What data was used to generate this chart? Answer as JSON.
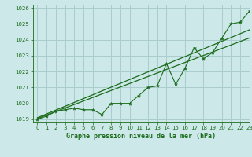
{
  "title": "Graphe pression niveau de la mer (hPa)",
  "bg_color": "#cce8e8",
  "grid_color": "#aacccc",
  "line_color": "#1a6b1a",
  "xlim": [
    -0.5,
    23
  ],
  "ylim": [
    1018.8,
    1026.2
  ],
  "yticks": [
    1019,
    1020,
    1021,
    1022,
    1023,
    1024,
    1025,
    1026
  ],
  "xticks": [
    0,
    1,
    2,
    3,
    4,
    5,
    6,
    7,
    8,
    9,
    10,
    11,
    12,
    13,
    14,
    15,
    16,
    17,
    18,
    19,
    20,
    21,
    22,
    23
  ],
  "x": [
    0,
    1,
    2,
    3,
    4,
    5,
    6,
    7,
    8,
    9,
    10,
    11,
    12,
    13,
    14,
    15,
    16,
    17,
    18,
    19,
    20,
    21,
    22,
    23
  ],
  "y_main": [
    1019.0,
    1019.2,
    1019.5,
    1019.6,
    1019.7,
    1019.6,
    1019.6,
    1019.3,
    1020.0,
    1020.0,
    1020.0,
    1020.5,
    1021.0,
    1021.1,
    1022.5,
    1021.2,
    1022.2,
    1023.5,
    1022.8,
    1023.2,
    1024.1,
    1025.0,
    1025.1,
    1025.8
  ],
  "y_reg1": [
    1019.05,
    1019.27,
    1019.49,
    1019.71,
    1019.93,
    1020.15,
    1020.37,
    1020.59,
    1020.81,
    1021.03,
    1021.25,
    1021.47,
    1021.69,
    1021.91,
    1022.13,
    1022.35,
    1022.57,
    1022.79,
    1023.01,
    1023.23,
    1023.45,
    1023.67,
    1023.89,
    1024.11
  ],
  "y_reg2": [
    1019.1,
    1019.34,
    1019.58,
    1019.82,
    1020.06,
    1020.3,
    1020.54,
    1020.78,
    1021.02,
    1021.26,
    1021.5,
    1021.74,
    1021.98,
    1022.22,
    1022.46,
    1022.7,
    1022.94,
    1023.18,
    1023.42,
    1023.66,
    1023.9,
    1024.14,
    1024.38,
    1024.62
  ]
}
